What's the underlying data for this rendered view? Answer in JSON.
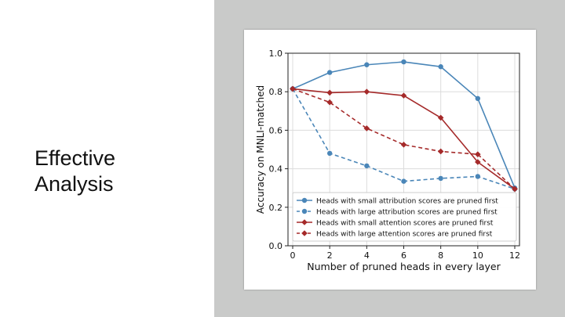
{
  "slide": {
    "title_line1": "Effective",
    "title_line2": "Analysis"
  },
  "chart_data": {
    "type": "line",
    "title": "",
    "xlabel": "Number of pruned heads in every layer",
    "ylabel": "Accuracy on MNLI-matched",
    "x": [
      0,
      2,
      4,
      6,
      8,
      10,
      12
    ],
    "xlim": [
      0,
      12
    ],
    "ylim": [
      0.0,
      1.0
    ],
    "xticks": [
      "0",
      "2",
      "4",
      "6",
      "8",
      "10",
      "12"
    ],
    "yticks": [
      "0.0",
      "0.2",
      "0.4",
      "0.6",
      "0.8",
      "1.0"
    ],
    "grid": true,
    "legend_position": "lower-left",
    "series": [
      {
        "name": "Heads with small attribution scores are pruned first",
        "values": [
          0.815,
          0.9,
          0.94,
          0.955,
          0.93,
          0.765,
          0.3
        ],
        "color": "#4a86b8",
        "dash": false,
        "marker": "circle"
      },
      {
        "name": "Heads with large attribution scores are pruned first",
        "values": [
          0.815,
          0.48,
          0.415,
          0.335,
          0.35,
          0.36,
          0.295
        ],
        "color": "#4a86b8",
        "dash": true,
        "marker": "circle"
      },
      {
        "name": "Heads with small attention scores are pruned first",
        "values": [
          0.815,
          0.795,
          0.8,
          0.78,
          0.665,
          0.435,
          0.295
        ],
        "color": "#a52a2a",
        "dash": false,
        "marker": "diamond"
      },
      {
        "name": "Heads with large attention scores are pruned first",
        "values": [
          0.815,
          0.745,
          0.61,
          0.525,
          0.49,
          0.475,
          0.295
        ],
        "color": "#a52a2a",
        "dash": true,
        "marker": "diamond"
      }
    ]
  }
}
